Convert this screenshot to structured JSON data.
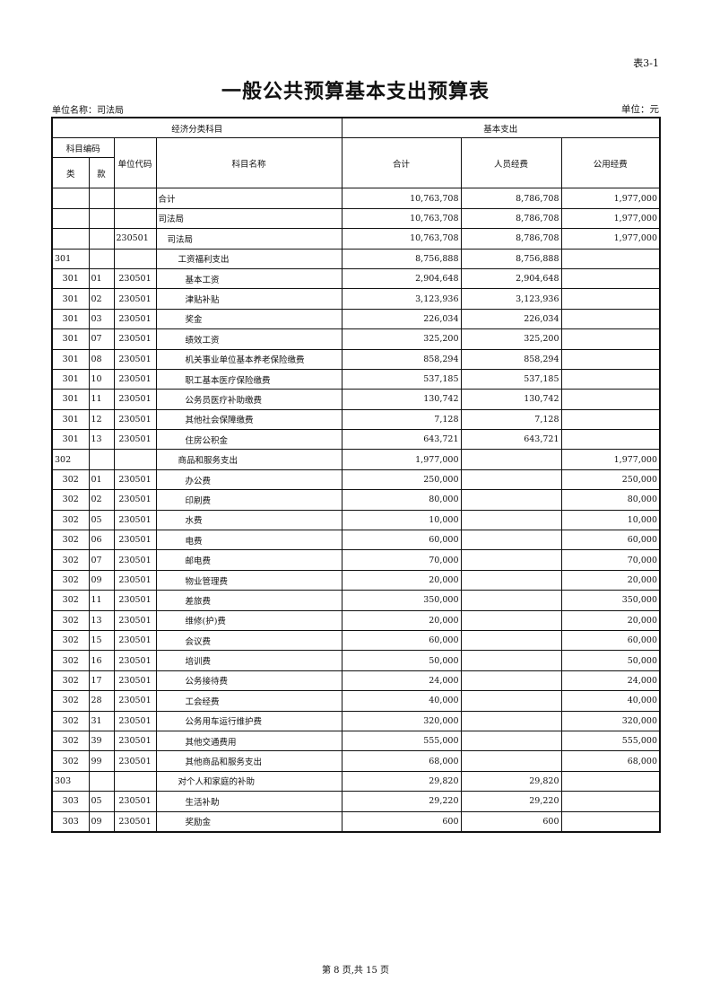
{
  "header": {
    "table_no": "表3-1",
    "title": "一般公共预算基本支出预算表",
    "unit_name": "单位名称：司法局",
    "unit": "单位：元"
  },
  "columns": {
    "econ_group": "经济分类科目",
    "basic_group": "基本支出",
    "code_group": "科目编码",
    "lei": "类",
    "kuan": "款",
    "unit_code": "单位代码",
    "subject_name": "科目名称",
    "total": "合计",
    "personnel": "人员经费",
    "public": "公用经费"
  },
  "rows": [
    {
      "lei": "",
      "kuan": "",
      "unit": "",
      "name": "合计",
      "total": "10,763,708",
      "personnel": "8,786,708",
      "public": "1,977,000"
    },
    {
      "lei": "",
      "kuan": "",
      "unit": "",
      "name": "司法局",
      "total": "10,763,708",
      "personnel": "8,786,708",
      "public": "1,977,000"
    },
    {
      "lei": "",
      "kuan": "",
      "unit": "230501",
      "name": "司法局",
      "total": "10,763,708",
      "personnel": "8,786,708",
      "public": "1,977,000"
    },
    {
      "lei": "301",
      "kuan": "",
      "unit": "",
      "name": "工资福利支出",
      "total": "8,756,888",
      "personnel": "8,756,888",
      "public": ""
    },
    {
      "lei": "301",
      "kuan": "01",
      "unit": "230501",
      "name": "基本工资",
      "total": "2,904,648",
      "personnel": "2,904,648",
      "public": ""
    },
    {
      "lei": "301",
      "kuan": "02",
      "unit": "230501",
      "name": "津贴补贴",
      "total": "3,123,936",
      "personnel": "3,123,936",
      "public": ""
    },
    {
      "lei": "301",
      "kuan": "03",
      "unit": "230501",
      "name": "奖金",
      "total": "226,034",
      "personnel": "226,034",
      "public": ""
    },
    {
      "lei": "301",
      "kuan": "07",
      "unit": "230501",
      "name": "绩效工资",
      "total": "325,200",
      "personnel": "325,200",
      "public": ""
    },
    {
      "lei": "301",
      "kuan": "08",
      "unit": "230501",
      "name": "机关事业单位基本养老保险缴费",
      "total": "858,294",
      "personnel": "858,294",
      "public": ""
    },
    {
      "lei": "301",
      "kuan": "10",
      "unit": "230501",
      "name": "职工基本医疗保险缴费",
      "total": "537,185",
      "personnel": "537,185",
      "public": ""
    },
    {
      "lei": "301",
      "kuan": "11",
      "unit": "230501",
      "name": "公务员医疗补助缴费",
      "total": "130,742",
      "personnel": "130,742",
      "public": ""
    },
    {
      "lei": "301",
      "kuan": "12",
      "unit": "230501",
      "name": "其他社会保障缴费",
      "total": "7,128",
      "personnel": "7,128",
      "public": ""
    },
    {
      "lei": "301",
      "kuan": "13",
      "unit": "230501",
      "name": "住房公积金",
      "total": "643,721",
      "personnel": "643,721",
      "public": ""
    },
    {
      "lei": "302",
      "kuan": "",
      "unit": "",
      "name": "商品和服务支出",
      "total": "1,977,000",
      "personnel": "",
      "public": "1,977,000"
    },
    {
      "lei": "302",
      "kuan": "01",
      "unit": "230501",
      "name": "办公费",
      "total": "250,000",
      "personnel": "",
      "public": "250,000"
    },
    {
      "lei": "302",
      "kuan": "02",
      "unit": "230501",
      "name": "印刷费",
      "total": "80,000",
      "personnel": "",
      "public": "80,000"
    },
    {
      "lei": "302",
      "kuan": "05",
      "unit": "230501",
      "name": "水费",
      "total": "10,000",
      "personnel": "",
      "public": "10,000"
    },
    {
      "lei": "302",
      "kuan": "06",
      "unit": "230501",
      "name": "电费",
      "total": "60,000",
      "personnel": "",
      "public": "60,000"
    },
    {
      "lei": "302",
      "kuan": "07",
      "unit": "230501",
      "name": "邮电费",
      "total": "70,000",
      "personnel": "",
      "public": "70,000"
    },
    {
      "lei": "302",
      "kuan": "09",
      "unit": "230501",
      "name": "物业管理费",
      "total": "20,000",
      "personnel": "",
      "public": "20,000"
    },
    {
      "lei": "302",
      "kuan": "11",
      "unit": "230501",
      "name": "差旅费",
      "total": "350,000",
      "personnel": "",
      "public": "350,000"
    },
    {
      "lei": "302",
      "kuan": "13",
      "unit": "230501",
      "name": "维修(护)费",
      "total": "20,000",
      "personnel": "",
      "public": "20,000"
    },
    {
      "lei": "302",
      "kuan": "15",
      "unit": "230501",
      "name": "会议费",
      "total": "60,000",
      "personnel": "",
      "public": "60,000"
    },
    {
      "lei": "302",
      "kuan": "16",
      "unit": "230501",
      "name": "培训费",
      "total": "50,000",
      "personnel": "",
      "public": "50,000"
    },
    {
      "lei": "302",
      "kuan": "17",
      "unit": "230501",
      "name": "公务接待费",
      "total": "24,000",
      "personnel": "",
      "public": "24,000"
    },
    {
      "lei": "302",
      "kuan": "28",
      "unit": "230501",
      "name": "工会经费",
      "total": "40,000",
      "personnel": "",
      "public": "40,000"
    },
    {
      "lei": "302",
      "kuan": "31",
      "unit": "230501",
      "name": "公务用车运行维护费",
      "total": "320,000",
      "personnel": "",
      "public": "320,000"
    },
    {
      "lei": "302",
      "kuan": "39",
      "unit": "230501",
      "name": "其他交通费用",
      "total": "555,000",
      "personnel": "",
      "public": "555,000"
    },
    {
      "lei": "302",
      "kuan": "99",
      "unit": "230501",
      "name": "其他商品和服务支出",
      "total": "68,000",
      "personnel": "",
      "public": "68,000"
    },
    {
      "lei": "303",
      "kuan": "",
      "unit": "",
      "name": "对个人和家庭的补助",
      "total": "29,820",
      "personnel": "29,820",
      "public": ""
    },
    {
      "lei": "303",
      "kuan": "05",
      "unit": "230501",
      "name": "生活补助",
      "total": "29,220",
      "personnel": "29,220",
      "public": ""
    },
    {
      "lei": "303",
      "kuan": "09",
      "unit": "230501",
      "name": "奖励金",
      "total": "600",
      "personnel": "600",
      "public": ""
    }
  ],
  "footer": {
    "page": "第 8 页,共 15 页"
  }
}
